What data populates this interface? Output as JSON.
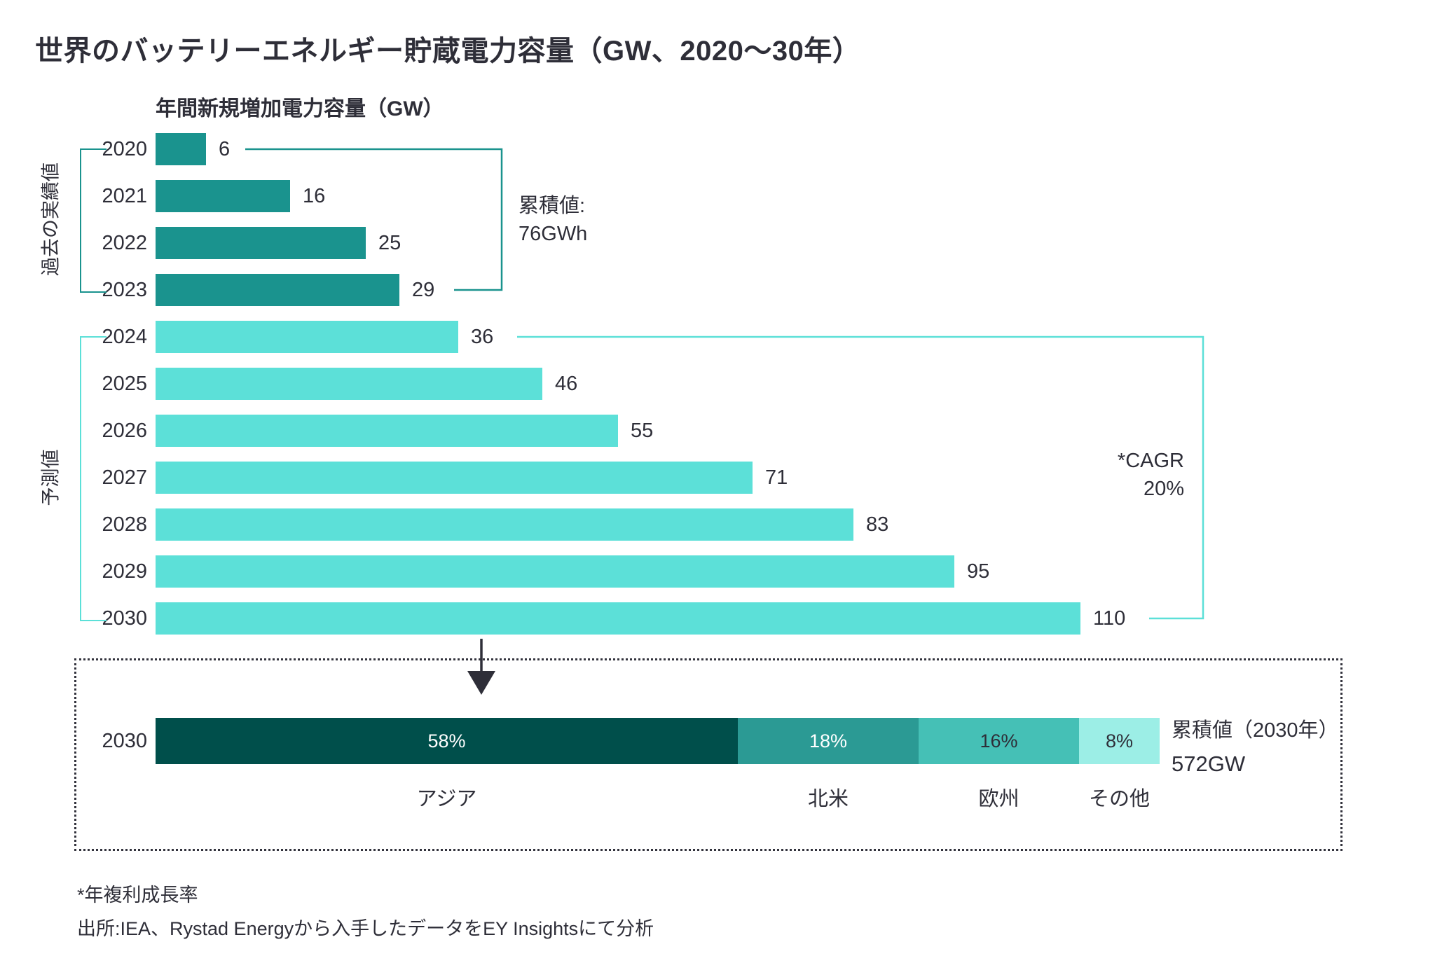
{
  "title": "世界のバッテリーエネルギー貯蔵電力容量（GW、2020～30年）",
  "chart_data": {
    "type": "bar",
    "orientation": "horizontal",
    "title": "年間新規増加電力容量（GW）",
    "unit": "GW",
    "xlim": [
      0,
      110
    ],
    "grid": false,
    "categories": [
      "2020",
      "2021",
      "2022",
      "2023",
      "2024",
      "2025",
      "2026",
      "2027",
      "2028",
      "2029",
      "2030"
    ],
    "values": [
      6,
      16,
      25,
      29,
      36,
      46,
      55,
      71,
      83,
      95,
      110
    ],
    "series_groups": [
      {
        "name": "過去の実績値",
        "years": "2020–2023",
        "color": "#1a938e"
      },
      {
        "name": "予測値",
        "years": "2024–2030",
        "color": "#5ce0d8"
      }
    ],
    "annotations": {
      "historical_cumulative": {
        "label": "累積値:",
        "value": "76GWh"
      },
      "forecast_cagr": {
        "label": "*CAGR",
        "value": "20%"
      }
    },
    "breakdown_2030": {
      "year": "2030",
      "total_label": "累積値（2030年）",
      "total_value": "572GW",
      "segments": [
        {
          "label": "アジア",
          "pct": 58,
          "color": "#004f4b",
          "label_color": "#ffffff"
        },
        {
          "label": "北米",
          "pct": 18,
          "color": "#2b9a94",
          "label_color": "#ffffff"
        },
        {
          "label": "欧州",
          "pct": 16,
          "color": "#45c0b6",
          "label_color": "#2e2e38"
        },
        {
          "label": "その他",
          "pct": 8,
          "color": "#9ceee6",
          "label_color": "#2e2e38"
        }
      ]
    }
  },
  "footnotes": [
    "*年複利成長率",
    "出所:IEA、Rystad Energyから入手したデータをEY Insightsにて分析"
  ],
  "colors": {
    "text": "#2e2e38",
    "historical_bar": "#1a938e",
    "forecast_bar": "#5ce0d8",
    "dotted_border": "#33333d"
  }
}
